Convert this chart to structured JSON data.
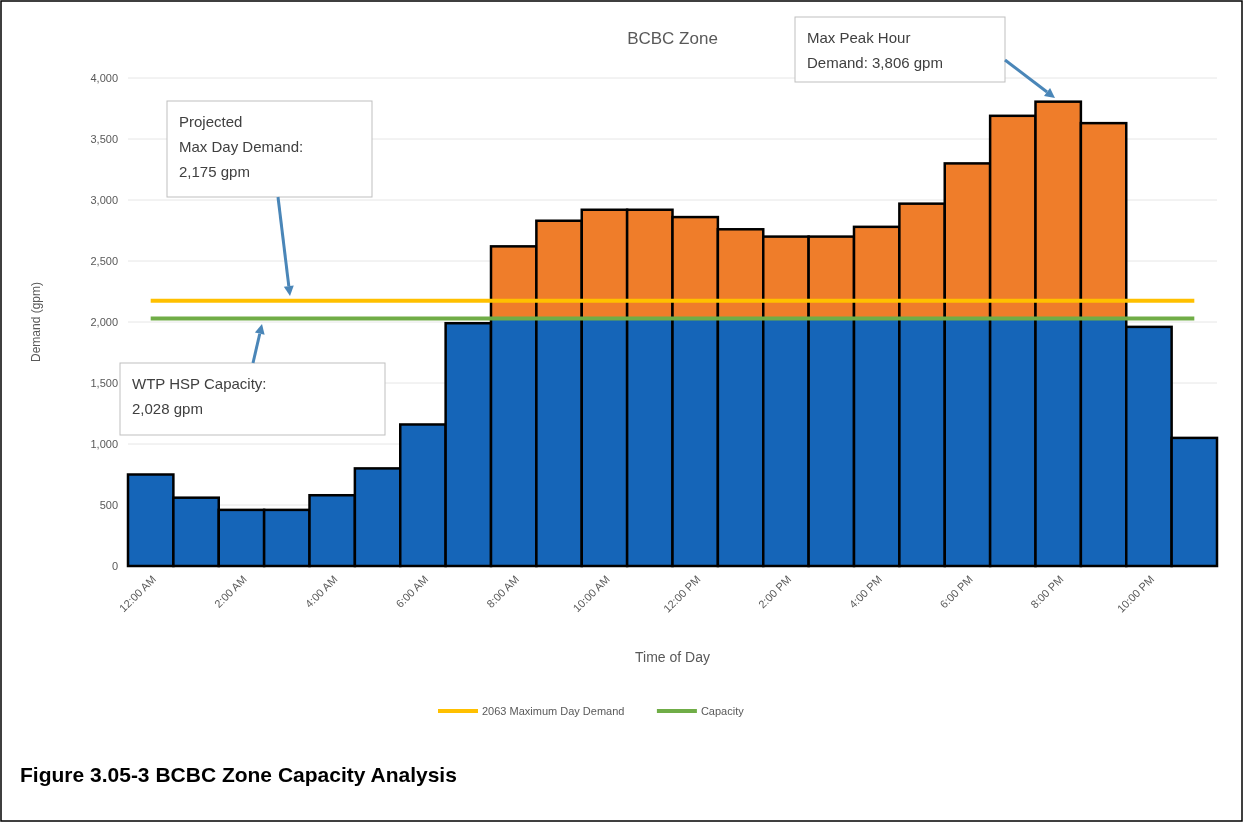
{
  "chart_data": {
    "type": "bar",
    "title": "BCBC Zone",
    "xlabel": "Time of Day",
    "ylabel": "Demand (gpm)",
    "categories": [
      "12:00 AM",
      null,
      "2:00 AM",
      null,
      "4:00 AM",
      null,
      "6:00 AM",
      null,
      "8:00 AM",
      null,
      "10:00 AM",
      null,
      "12:00 PM",
      null,
      "2:00 PM",
      null,
      "4:00 PM",
      null,
      "6:00 PM",
      null,
      "8:00 PM",
      null,
      "10:00 PM",
      null
    ],
    "stacked": true,
    "series": [
      {
        "type": "bar",
        "color": "#1565b8",
        "values": [
          750,
          560,
          460,
          460,
          580,
          800,
          1160,
          1990,
          2028,
          2028,
          2028,
          2028,
          2028,
          2028,
          2028,
          2028,
          2028,
          2028,
          2028,
          2028,
          2028,
          2028,
          1960,
          1050
        ]
      },
      {
        "type": "bar",
        "color": "#ef7d2a",
        "values": [
          null,
          null,
          null,
          null,
          null,
          null,
          null,
          null,
          592,
          802,
          892,
          892,
          832,
          732,
          672,
          672,
          752,
          942,
          1272,
          1662,
          1778,
          1602,
          null,
          null
        ]
      },
      {
        "type": "line",
        "name": "2063 Maximum Day Demand",
        "color": "#ffc000",
        "values": [
          2175,
          2175,
          2175,
          2175,
          2175,
          2175,
          2175,
          2175,
          2175,
          2175,
          2175,
          2175,
          2175,
          2175,
          2175,
          2175,
          2175,
          2175,
          2175,
          2175,
          2175,
          2175,
          2175,
          2175
        ]
      },
      {
        "type": "line",
        "name": "Capacity",
        "color": "#70ad47",
        "values": [
          2028,
          2028,
          2028,
          2028,
          2028,
          2028,
          2028,
          2028,
          2028,
          2028,
          2028,
          2028,
          2028,
          2028,
          2028,
          2028,
          2028,
          2028,
          2028,
          2028,
          2028,
          2028,
          2028,
          2028
        ]
      }
    ],
    "ylim": [
      0,
      4000
    ],
    "yticks": [
      {
        "value": 0,
        "label": "0"
      },
      {
        "value": 500,
        "label": "500"
      },
      {
        "value": 1000,
        "label": "1,000"
      },
      {
        "value": 1500,
        "label": "1,500"
      },
      {
        "value": 2000,
        "label": "2,000"
      },
      {
        "value": 2500,
        "label": "2,500"
      },
      {
        "value": 3000,
        "label": "3,000"
      },
      {
        "value": 3500,
        "label": "3,500"
      },
      {
        "value": 4000,
        "label": "4,000"
      }
    ],
    "grid": "y",
    "legend": "bottom",
    "marker": "none",
    "line_style": "solid",
    "annotations": [
      "Projected\nMax Day Demand:\n2,175 gpm",
      "WTP HSP Capacity:\n2,028 gpm",
      "Max Peak Hour\nDemand: 3,806 gpm",
      "Figure 3.05-3  BCBC Zone Capacity Analysis"
    ]
  }
}
